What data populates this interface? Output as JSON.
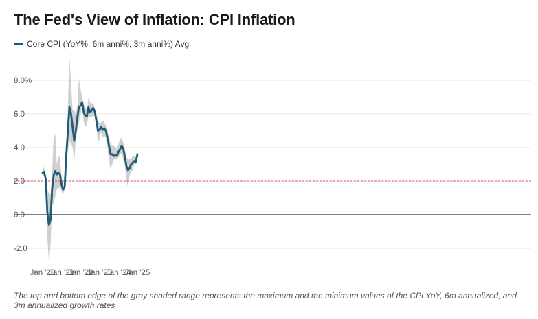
{
  "title": "The Fed's View of Inflation: CPI Inflation",
  "legend": {
    "label": "Core CPI (YoY%, 6m anni%, 3m anni%) Avg",
    "color": "#1f5a78"
  },
  "caption": "The top and bottom edge of the gray shaded range represents the maximum and the minimum values of the CPI YoY, 6m annualized, and 3m annualized growth rates",
  "colors": {
    "line": "#1f5a78",
    "band": "#cfcfcf",
    "target": "#d9534f",
    "zero": "#000000",
    "grid": "#e6e6e6"
  },
  "chart_data": {
    "type": "area",
    "title": "The Fed's View of Inflation: CPI Inflation",
    "xlabel": "",
    "ylabel": "",
    "ylim": [
      -3.0,
      9.5
    ],
    "grid": true,
    "legend_position": "top-left",
    "x_start": "Jan 2020",
    "x_ticks": [
      {
        "index": 0,
        "label": "Jan '20"
      },
      {
        "index": 12,
        "label": "Jan '21"
      },
      {
        "index": 24,
        "label": "Jan '22"
      },
      {
        "index": 36,
        "label": "Jan '23"
      },
      {
        "index": 48,
        "label": "Jan '24"
      },
      {
        "index": 60,
        "label": "Jan '25"
      }
    ],
    "y_ticks": [
      {
        "value": 8.0,
        "label": "8.0%"
      },
      {
        "value": 6.0,
        "label": "6.0"
      },
      {
        "value": 4.0,
        "label": "4.0"
      },
      {
        "value": 2.0,
        "label": "2.0"
      },
      {
        "value": 0.0,
        "label": "0.0"
      },
      {
        "value": -2.0,
        "label": "-2.0"
      }
    ],
    "reference_lines": [
      {
        "value": 2.0,
        "style": "dashed",
        "description": "2% target"
      },
      {
        "value": 0.0,
        "style": "solid",
        "description": "zero line"
      }
    ],
    "series": [
      {
        "name": "Core CPI (YoY%, 6m anni%, 3m anni%) Avg",
        "values": [
          2.5,
          2.55,
          2.1,
          0.1,
          -0.6,
          -0.3,
          1.5,
          2.35,
          2.6,
          2.4,
          2.5,
          2.4,
          1.8,
          1.5,
          1.7,
          3.6,
          5.0,
          6.4,
          6.0,
          5.2,
          4.4,
          5.0,
          5.8,
          6.4,
          6.5,
          6.7,
          6.1,
          5.9,
          5.85,
          6.4,
          6.1,
          6.2,
          6.35,
          6.15,
          5.6,
          5.0,
          5.05,
          5.25,
          5.05,
          5.15,
          5.0,
          4.6,
          4.1,
          3.6,
          3.6,
          3.5,
          3.55,
          3.5,
          3.75,
          3.9,
          4.1,
          3.95,
          3.5,
          2.9,
          2.65,
          2.75,
          3.0,
          3.1,
          3.2,
          3.15,
          3.6
        ]
      },
      {
        "name": "Range max",
        "values": [
          2.8,
          2.8,
          2.2,
          1.5,
          1.3,
          1.2,
          2.5,
          4.6,
          4.8,
          3.0,
          3.5,
          3.4,
          2.3,
          1.6,
          1.8,
          3.9,
          6.5,
          9.4,
          7.7,
          6.2,
          6.2,
          6.0,
          6.5,
          8.1,
          7.5,
          7.0,
          6.6,
          6.4,
          6.2,
          7.0,
          6.7,
          6.6,
          6.7,
          6.3,
          6.0,
          5.6,
          5.4,
          5.5,
          5.6,
          5.5,
          5.3,
          5.0,
          4.6,
          4.3,
          4.1,
          4.1,
          4.0,
          3.9,
          4.2,
          4.5,
          4.6,
          4.3,
          3.9,
          3.4,
          3.3,
          3.3,
          3.3,
          3.5,
          3.5,
          3.3,
          3.9
        ]
      },
      {
        "name": "Range min",
        "values": [
          2.3,
          2.3,
          2.1,
          -1.3,
          -2.9,
          -1.8,
          0.5,
          0.7,
          1.1,
          1.5,
          1.6,
          1.6,
          1.4,
          1.2,
          1.5,
          2.9,
          3.8,
          4.4,
          4.2,
          4.0,
          3.1,
          4.5,
          5.0,
          5.5,
          6.0,
          6.5,
          5.5,
          5.3,
          5.3,
          5.9,
          5.8,
          5.8,
          5.9,
          5.9,
          5.3,
          4.3,
          4.5,
          4.9,
          4.6,
          4.7,
          4.6,
          4.0,
          3.2,
          2.7,
          3.0,
          3.3,
          3.3,
          3.3,
          3.4,
          3.6,
          3.6,
          3.3,
          3.0,
          2.0,
          1.7,
          2.3,
          2.6,
          2.6,
          3.0,
          3.0,
          3.4
        ]
      }
    ]
  }
}
